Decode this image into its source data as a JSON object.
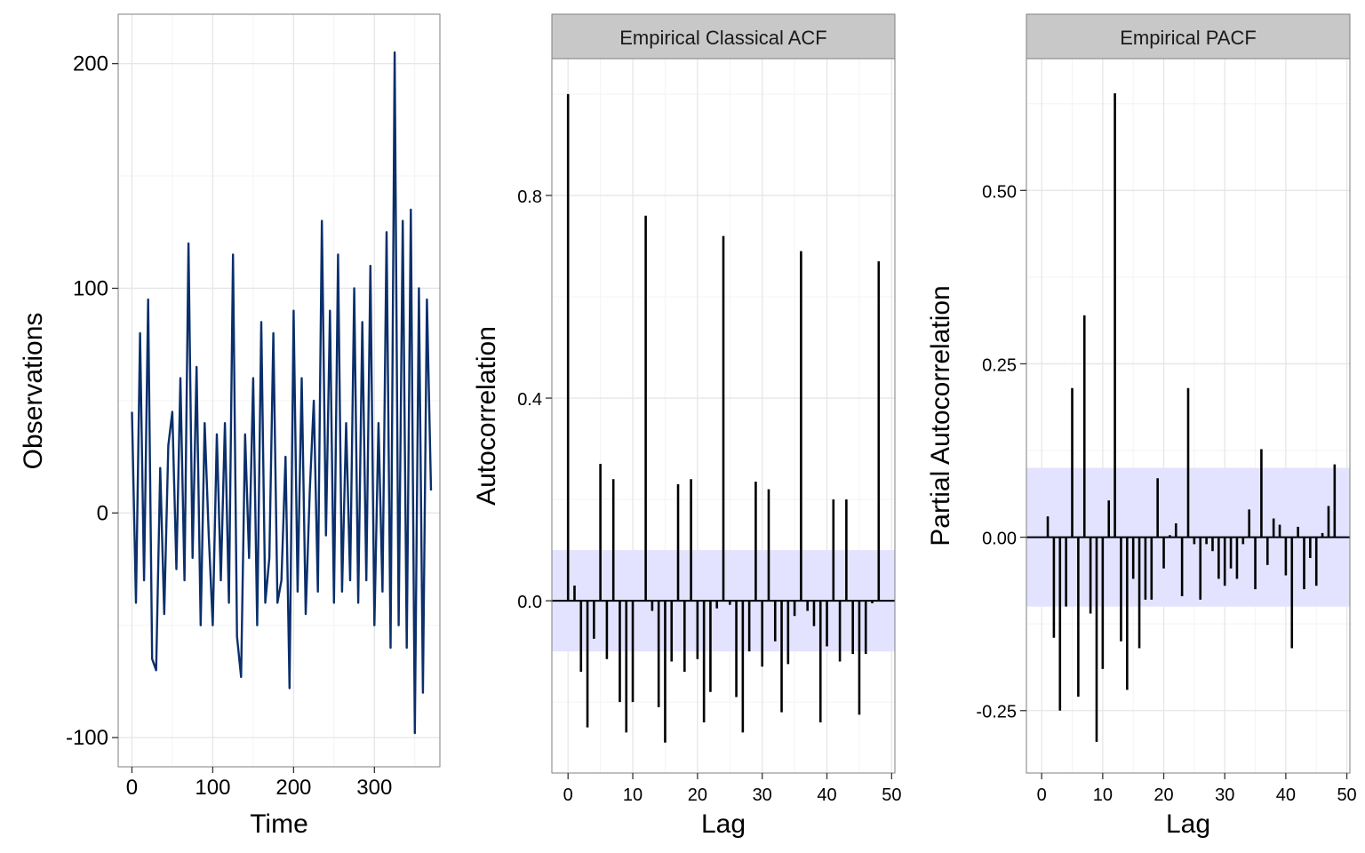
{
  "colors": {
    "series_line": "#0b2f6b",
    "bars": "#000000",
    "band": "#e3e3ff",
    "grid_major": "#e6e6e6",
    "grid_minor": "#f3f3f3",
    "strip_fill": "#c8c8c8",
    "panel_border": "#7f7f7f",
    "axis_text": "#000000"
  },
  "chart_data": [
    {
      "type": "line",
      "title": "",
      "xlabel": "Time",
      "ylabel": "Observations",
      "xlim": [
        -17,
        381
      ],
      "ylim": [
        -113,
        222
      ],
      "xticks": [
        0,
        100,
        200,
        300
      ],
      "xtick_labels": [
        "0",
        "100",
        "200",
        "300"
      ],
      "yticks": [
        -100,
        0,
        100,
        200
      ],
      "ytick_labels": [
        "-100",
        "0",
        "100",
        "200"
      ],
      "grid": true,
      "series": [
        {
          "x": [
            0,
            5,
            10,
            15,
            20,
            25,
            30,
            35,
            40,
            45,
            50,
            55,
            60,
            65,
            70,
            75,
            80,
            85,
            90,
            95,
            100,
            105,
            110,
            115,
            120,
            125,
            130,
            135,
            140,
            145,
            150,
            155,
            160,
            165,
            170,
            175,
            180,
            185,
            190,
            195,
            200,
            205,
            210,
            215,
            220,
            225,
            230,
            235,
            240,
            245,
            250,
            255,
            260,
            265,
            270,
            275,
            280,
            285,
            290,
            295,
            300,
            305,
            310,
            315,
            320,
            325,
            330,
            335,
            340,
            345,
            350,
            355,
            360,
            365,
            370
          ],
          "y": [
            45,
            -40,
            80,
            -30,
            95,
            -65,
            -70,
            20,
            -45,
            30,
            45,
            -25,
            60,
            -30,
            120,
            -20,
            65,
            -50,
            40,
            -10,
            -50,
            35,
            -30,
            40,
            -40,
            115,
            -55,
            -73,
            35,
            -20,
            60,
            -50,
            85,
            -40,
            -20,
            80,
            -40,
            -30,
            25,
            -78,
            90,
            -35,
            60,
            -45,
            10,
            50,
            -35,
            130,
            -10,
            90,
            -40,
            115,
            -35,
            40,
            -30,
            100,
            -40,
            85,
            -30,
            110,
            -50,
            40,
            -35,
            125,
            -60,
            205,
            -50,
            130,
            -60,
            135,
            -98,
            100,
            -80,
            95,
            10
          ]
        }
      ]
    },
    {
      "type": "bar",
      "title": "Empirical Classical ACF",
      "xlabel": "Lag",
      "ylabel": "Autocorrelation",
      "xlim": [
        -2.5,
        50.5
      ],
      "ylim": [
        -0.34,
        1.07
      ],
      "xticks": [
        0,
        10,
        20,
        30,
        40,
        50
      ],
      "xtick_labels": [
        "0",
        "10",
        "20",
        "30",
        "40",
        "50"
      ],
      "yticks": [
        0.0,
        0.4,
        0.8
      ],
      "ytick_labels": [
        "0.0",
        "0.4",
        "0.8"
      ],
      "confidence_band": [
        -0.1,
        0.1
      ],
      "grid": true,
      "lags": [
        0,
        1,
        2,
        3,
        4,
        5,
        6,
        7,
        8,
        9,
        10,
        11,
        12,
        13,
        14,
        15,
        16,
        17,
        18,
        19,
        20,
        21,
        22,
        23,
        24,
        25,
        26,
        27,
        28,
        29,
        30,
        31,
        32,
        33,
        34,
        35,
        36,
        37,
        38,
        39,
        40,
        41,
        42,
        43,
        44,
        45,
        46,
        47,
        48
      ],
      "values": [
        1.0,
        0.03,
        -0.14,
        -0.25,
        -0.075,
        0.27,
        -0.115,
        0.24,
        -0.2,
        -0.26,
        -0.2,
        0.0,
        0.76,
        -0.02,
        -0.21,
        -0.28,
        -0.12,
        0.23,
        -0.14,
        0.24,
        -0.115,
        -0.24,
        -0.18,
        -0.015,
        0.72,
        -0.008,
        -0.19,
        -0.26,
        -0.1,
        0.235,
        -0.13,
        0.22,
        -0.08,
        -0.22,
        -0.125,
        -0.03,
        0.69,
        -0.02,
        -0.05,
        -0.24,
        -0.09,
        0.2,
        -0.12,
        0.2,
        -0.105,
        -0.225,
        -0.105,
        -0.005,
        0.67
      ]
    },
    {
      "type": "bar",
      "title": "Empirical PACF",
      "xlabel": "Lag",
      "ylabel": "Partial Autocorrelation",
      "xlim": [
        -2.5,
        50.5
      ],
      "ylim": [
        -0.34,
        0.69
      ],
      "xticks": [
        0,
        10,
        20,
        30,
        40,
        50
      ],
      "xtick_labels": [
        "0",
        "10",
        "20",
        "30",
        "40",
        "50"
      ],
      "yticks": [
        -0.25,
        0.0,
        0.25,
        0.5
      ],
      "ytick_labels": [
        "-0.25",
        "0.00",
        "0.25",
        "0.50"
      ],
      "confidence_band": [
        -0.1,
        0.1
      ],
      "grid": true,
      "lags": [
        1,
        2,
        3,
        4,
        5,
        6,
        7,
        8,
        9,
        10,
        11,
        12,
        13,
        14,
        15,
        16,
        17,
        18,
        19,
        20,
        21,
        22,
        23,
        24,
        25,
        26,
        27,
        28,
        29,
        30,
        31,
        32,
        33,
        34,
        35,
        36,
        37,
        38,
        39,
        40,
        41,
        42,
        43,
        44,
        45,
        46,
        47,
        48
      ],
      "values": [
        0.03,
        -0.145,
        -0.25,
        -0.1,
        0.215,
        -0.23,
        0.32,
        -0.11,
        -0.295,
        -0.19,
        0.053,
        0.64,
        -0.15,
        -0.22,
        -0.06,
        -0.16,
        -0.09,
        -0.09,
        0.085,
        -0.045,
        0.003,
        0.02,
        -0.085,
        0.215,
        -0.01,
        -0.09,
        -0.01,
        -0.02,
        -0.06,
        -0.07,
        -0.045,
        -0.06,
        -0.01,
        0.04,
        -0.075,
        0.127,
        -0.04,
        0.027,
        0.018,
        -0.055,
        -0.16,
        0.015,
        -0.075,
        -0.03,
        -0.07,
        0.006,
        0.045,
        0.105
      ]
    }
  ]
}
